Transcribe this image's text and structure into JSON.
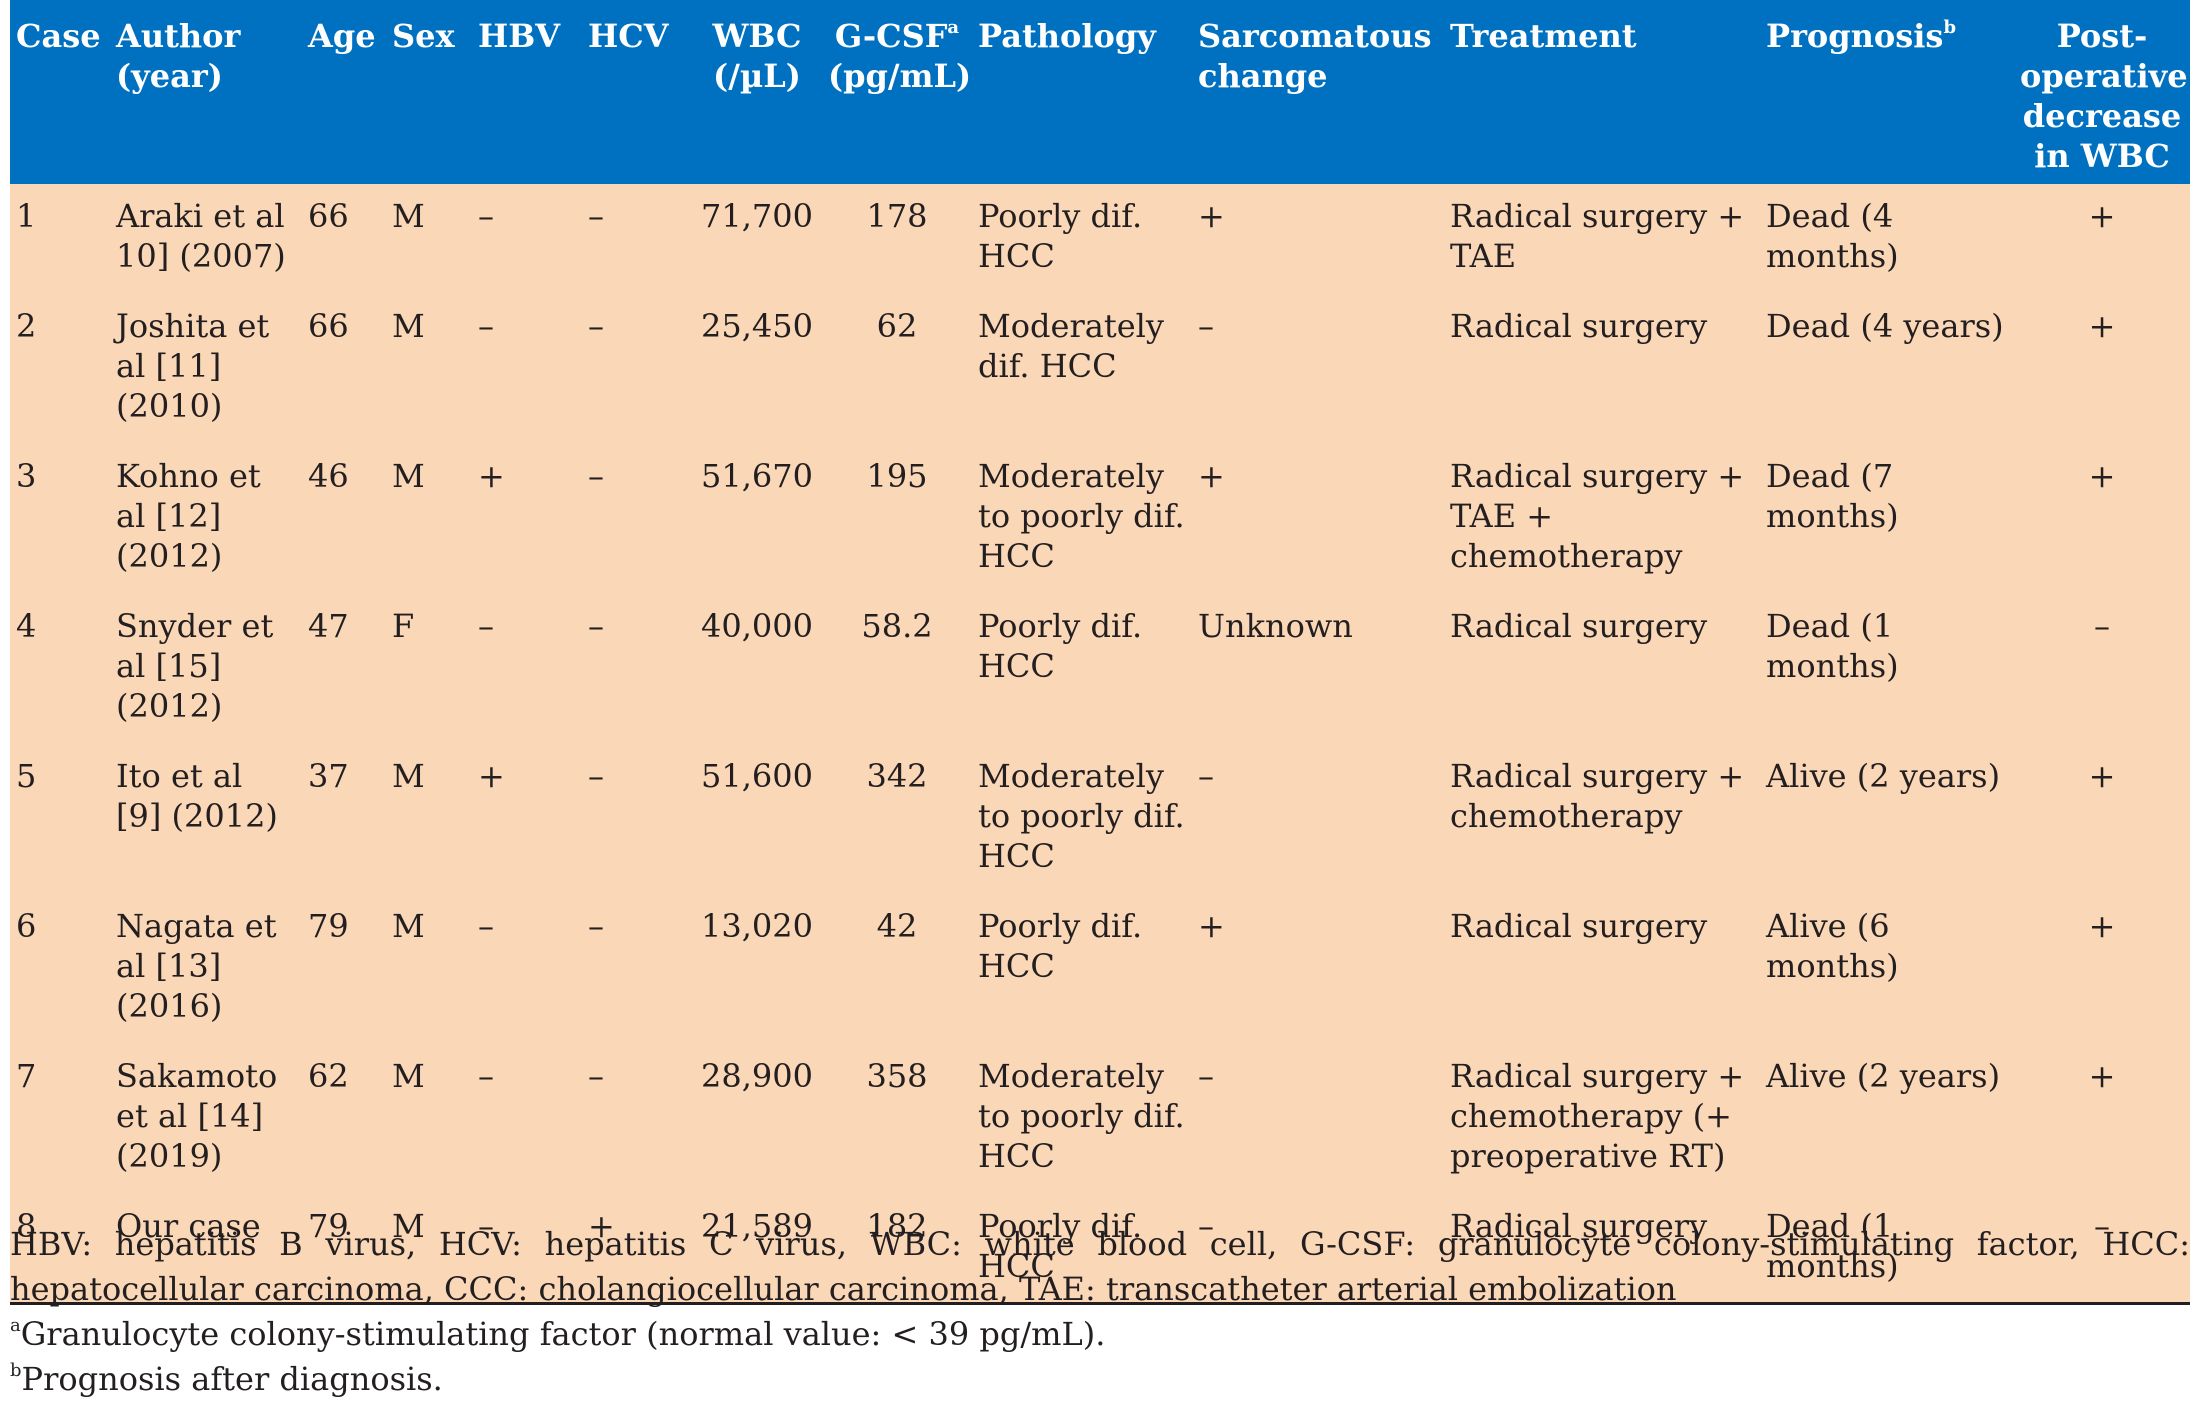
{
  "table": {
    "headers": {
      "case": "Case",
      "author": "Author (year)",
      "age": "Age",
      "sex": "Sex",
      "hbv": "HBV",
      "hcv": "HCV",
      "wbc": "WBC (/µL)",
      "gcsf": "G-CSF",
      "gcsf_marker": "a",
      "gcsf_unit": "(pg/mL)",
      "pathology": "Pathology",
      "sarcomatous": "Sarcomatous change",
      "treatment": "Treatment",
      "prognosis": "Prognosis",
      "prognosis_marker": "b",
      "postop": "Post-operative decrease in WBC"
    },
    "rows": [
      {
        "case": "1",
        "author": "Araki et al 10] (2007)",
        "age": "66",
        "sex": "M",
        "hbv": "–",
        "hcv": "–",
        "wbc": "71,700",
        "gcsf": "178",
        "pathology": "Poorly dif. HCC",
        "sarcomatous": "+",
        "treatment": "Radical surgery + TAE",
        "prognosis": "Dead (4 months)",
        "postop": "+"
      },
      {
        "case": "2",
        "author": "Joshita et al [11] (2010)",
        "age": "66",
        "sex": "M",
        "hbv": "–",
        "hcv": "–",
        "wbc": "25,450",
        "gcsf": "62",
        "pathology": "Moderately dif. HCC",
        "sarcomatous": "–",
        "treatment": "Radical surgery",
        "prognosis": "Dead (4 years)",
        "postop": "+"
      },
      {
        "case": "3",
        "author": "Kohno et al [12] (2012)",
        "age": "46",
        "sex": "M",
        "hbv": "+",
        "hcv": "–",
        "wbc": "51,670",
        "gcsf": "195",
        "pathology": "Moderately to poorly dif. HCC",
        "sarcomatous": "+",
        "treatment": "Radical surgery + TAE + chemotherapy",
        "prognosis": "Dead (7 months)",
        "postop": "+"
      },
      {
        "case": "4",
        "author": "Snyder et al [15] (2012)",
        "age": "47",
        "sex": "F",
        "hbv": "–",
        "hcv": "–",
        "wbc": "40,000",
        "gcsf": "58.2",
        "pathology": "Poorly dif. HCC",
        "sarcomatous": "Unknown",
        "treatment": "Radical surgery",
        "prognosis": "Dead (1 months)",
        "postop": "–"
      },
      {
        "case": "5",
        "author": "Ito et al [9] (2012)",
        "age": "37",
        "sex": "M",
        "hbv": "+",
        "hcv": "–",
        "wbc": "51,600",
        "gcsf": "342",
        "pathology": "Moderately to poorly dif. HCC",
        "sarcomatous": "–",
        "treatment": "Radical surgery + chemotherapy",
        "prognosis": "Alive (2 years)",
        "postop": "+"
      },
      {
        "case": "6",
        "author": "Nagata et al [13] (2016)",
        "age": "79",
        "sex": "M",
        "hbv": "–",
        "hcv": "–",
        "wbc": "13,020",
        "gcsf": "42",
        "pathology": "Poorly dif. HCC",
        "sarcomatous": "+",
        "treatment": "Radical surgery",
        "prognosis": "Alive (6 months)",
        "postop": "+"
      },
      {
        "case": "7",
        "author": "Sakamoto et al [14] (2019)",
        "age": "62",
        "sex": "M",
        "hbv": "–",
        "hcv": "–",
        "wbc": "28,900",
        "gcsf": "358",
        "pathology": "Moderately to poorly dif. HCC",
        "sarcomatous": "–",
        "treatment": "Radical surgery + chemotherapy (+ preoperative RT)",
        "prognosis": "Alive (2 years)",
        "postop": "+"
      },
      {
        "case": "8",
        "author": "Our case",
        "age": "79",
        "sex": "M",
        "hbv": "–",
        "hcv": "+",
        "wbc": "21,589",
        "gcsf": "182",
        "pathology": "Poorly dif. HCC",
        "sarcomatous": "–",
        "treatment": "Radical surgery",
        "prognosis": "Dead (1 months)",
        "postop": "–"
      }
    ]
  },
  "footnotes": {
    "abbreviations": "HBV: hepatitis B virus, HCV: hepatitis C virus, WBC: white blood cell, G-CSF: granulocyte colony-stimulating factor, HCC: hepatocellular carcinoma, CCC: cholangiocellular carcinoma, TAE: transcatheter arterial embolization",
    "a_marker": "a",
    "a_text": "Granulocyte colony-stimulating factor (normal value: < 39 pg/mL).",
    "b_marker": "b",
    "b_text": "Prognosis after diagnosis."
  },
  "colors": {
    "header_bg": "#0070c0",
    "header_text": "#ffffff",
    "body_bg": "#fad7b7",
    "body_text": "#231f20"
  }
}
